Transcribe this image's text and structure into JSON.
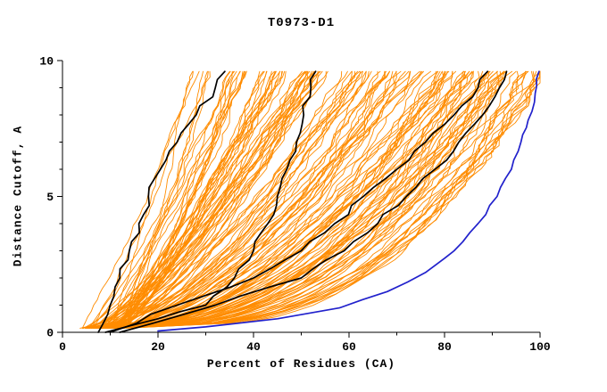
{
  "title": "T0973-D1",
  "chart_data": {
    "type": "line",
    "title": "T0973-D1",
    "xlabel": "Percent of Residues (CA)",
    "ylabel": "Distance Cutoff, A",
    "xlim": [
      0,
      100
    ],
    "ylim": [
      0,
      10
    ],
    "x_major_ticks": [
      0,
      20,
      40,
      60,
      80,
      100
    ],
    "x_minor_step": 10,
    "y_major_ticks": [
      0,
      5,
      10
    ],
    "y_minor_step": 1,
    "grid": false,
    "legend": "none",
    "colors": {
      "ensemble": "#FF8C00",
      "highlight": "#000000",
      "best": "#2121CC",
      "axis": "#000000",
      "background": "#FFFFFF"
    },
    "ensemble": {
      "description": "Cloud of orange per-model cumulative accuracy curves (percent of CA residues under distance cutoff)",
      "count": 150,
      "seed": 11,
      "x_start_range": [
        4,
        13
      ],
      "x_top_range": [
        25,
        100
      ],
      "y_start": 0.15,
      "y_end": 9.6
    },
    "highlight_series": [
      {
        "name": "black-curve-1",
        "points": [
          [
            7.5,
            0
          ],
          [
            10,
            1
          ],
          [
            12,
            2
          ],
          [
            14,
            3
          ],
          [
            16,
            4
          ],
          [
            18,
            5
          ],
          [
            20.5,
            6
          ],
          [
            24,
            7
          ],
          [
            28,
            8
          ],
          [
            32,
            9
          ],
          [
            34,
            9.6
          ]
        ]
      },
      {
        "name": "black-curve-2",
        "points": [
          [
            9,
            0
          ],
          [
            20,
            0.5
          ],
          [
            30,
            1
          ],
          [
            36,
            2
          ],
          [
            40,
            3
          ],
          [
            43,
            4
          ],
          [
            45,
            5
          ],
          [
            47,
            6
          ],
          [
            49,
            7
          ],
          [
            50.5,
            8
          ],
          [
            52,
            9
          ],
          [
            53,
            9.6
          ]
        ]
      },
      {
        "name": "black-curve-3",
        "points": [
          [
            10,
            0
          ],
          [
            24,
            1
          ],
          [
            40,
            2
          ],
          [
            50,
            3
          ],
          [
            57,
            4
          ],
          [
            63,
            5
          ],
          [
            70,
            6
          ],
          [
            76,
            7
          ],
          [
            82,
            8
          ],
          [
            87,
            9
          ],
          [
            89,
            9.6
          ]
        ]
      },
      {
        "name": "black-curve-4",
        "points": [
          [
            12,
            0
          ],
          [
            32,
            1
          ],
          [
            50,
            2
          ],
          [
            59,
            3
          ],
          [
            66,
            4
          ],
          [
            72,
            5
          ],
          [
            78,
            6
          ],
          [
            83,
            7
          ],
          [
            88,
            8
          ],
          [
            91.5,
            9
          ],
          [
            93,
            9.6
          ]
        ]
      }
    ],
    "best_series": {
      "name": "blue-curve",
      "points": [
        [
          20,
          0.05
        ],
        [
          30,
          0.2
        ],
        [
          45,
          0.5
        ],
        [
          58,
          0.9
        ],
        [
          68,
          1.5
        ],
        [
          76,
          2.2
        ],
        [
          82,
          3.0
        ],
        [
          87,
          4.0
        ],
        [
          91,
          5.0
        ],
        [
          94,
          6.0
        ],
        [
          96,
          7.0
        ],
        [
          97.5,
          7.8
        ],
        [
          99,
          8.8
        ],
        [
          99.8,
          9.6
        ]
      ]
    }
  }
}
